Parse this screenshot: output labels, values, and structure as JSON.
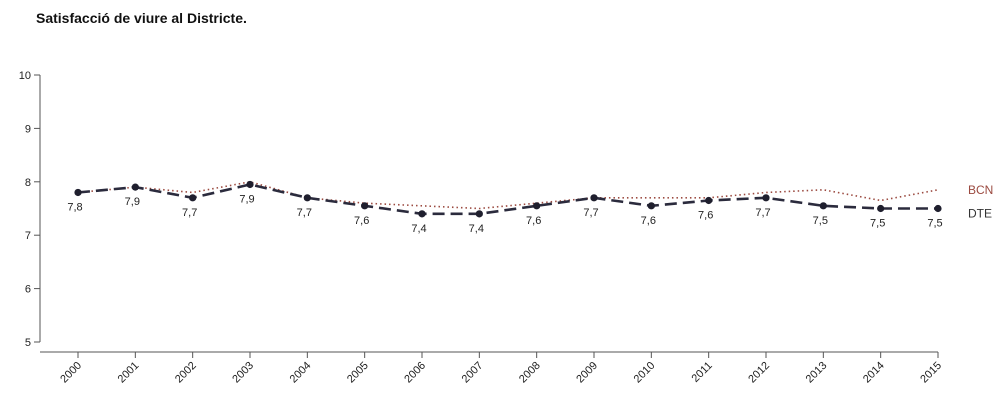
{
  "chart_data": {
    "type": "line",
    "title": "Satisfacció de viure al Districte.",
    "xlabel": "",
    "ylabel": "",
    "ylim": [
      5,
      10
    ],
    "yticks": [
      "5",
      "6",
      "7",
      "8",
      "9",
      "10"
    ],
    "categories": [
      "2000",
      "2001",
      "2002",
      "2003",
      "2004",
      "2005",
      "2006",
      "2007",
      "2008",
      "2009",
      "2010",
      "2011",
      "2012",
      "2013",
      "2014",
      "2015"
    ],
    "series": [
      {
        "name": "BCN",
        "color": "#9b4a40",
        "style": "dotted",
        "values": [
          7.8,
          7.9,
          7.8,
          8.0,
          7.7,
          7.6,
          7.55,
          7.5,
          7.6,
          7.7,
          7.7,
          7.7,
          7.8,
          7.85,
          7.65,
          7.85
        ]
      },
      {
        "name": "DTE",
        "color": "#2b2b3d",
        "style": "dashed",
        "values": [
          7.8,
          7.9,
          7.7,
          7.95,
          7.7,
          7.55,
          7.4,
          7.4,
          7.55,
          7.7,
          7.55,
          7.65,
          7.7,
          7.55,
          7.5,
          7.5
        ],
        "labels": [
          "7,8",
          "7,9",
          "7,7",
          "7,9",
          "7,7",
          "7,6",
          "7,4",
          "7,4",
          "7,6",
          "7,7",
          "7,6",
          "7,6",
          "7,7",
          "7,5",
          "7,5",
          "7,5"
        ]
      }
    ],
    "grid": false,
    "legend": "right"
  }
}
